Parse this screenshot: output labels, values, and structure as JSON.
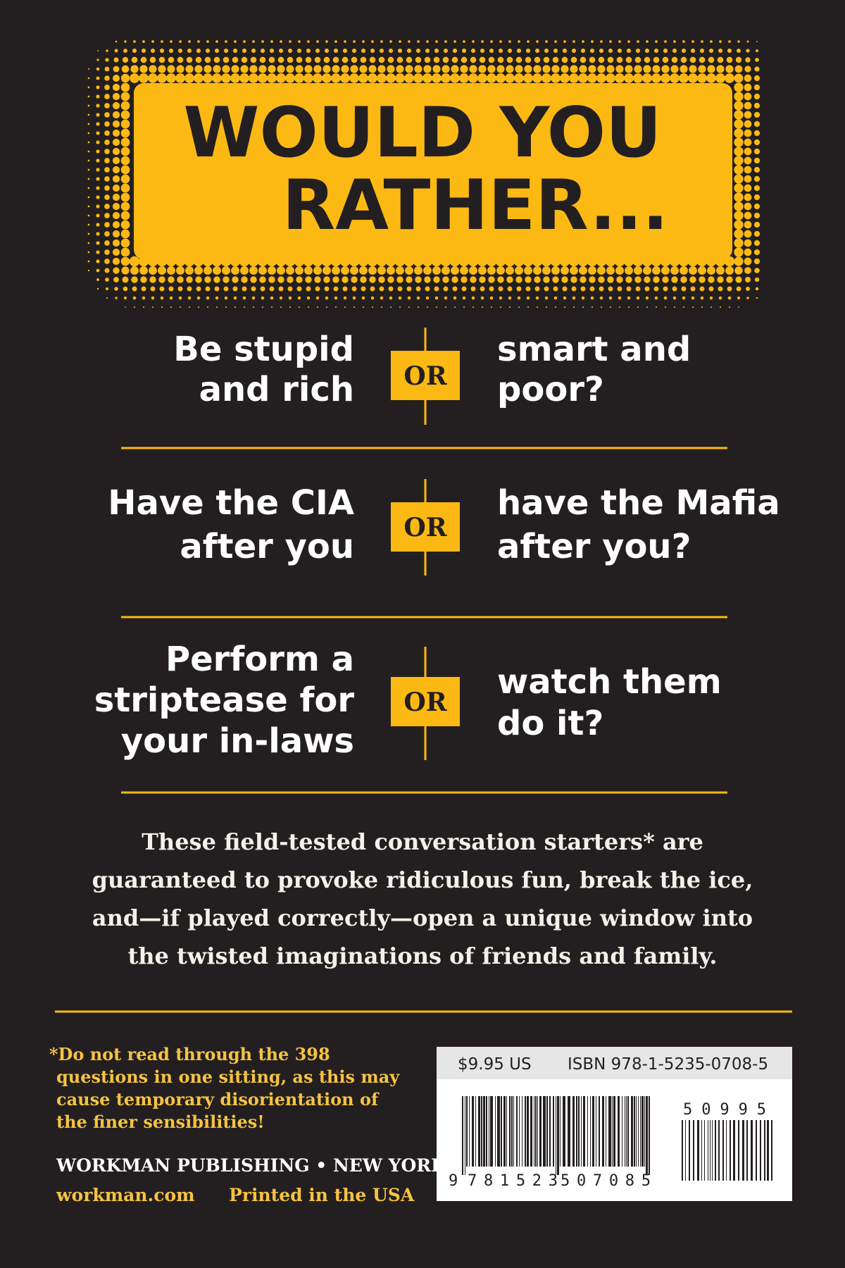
{
  "header": {
    "title": [
      "WOULD YOU",
      "RATHER..."
    ]
  },
  "questions": [
    {
      "left": [
        "Be stupid",
        "and rich"
      ],
      "or": "OR",
      "right": [
        "smart and",
        "poor?"
      ]
    },
    {
      "left": [
        "Have the CIA",
        "after you"
      ],
      "or": "OR",
      "right": [
        "have the Mafia",
        "after you?"
      ]
    },
    {
      "left": [
        "Perform a",
        "striptease for",
        "your in-laws"
      ],
      "or": "OR",
      "right": [
        "watch them",
        "do it?"
      ]
    }
  ],
  "blurb": [
    "These field-tested conversation starters* are",
    "guaranteed to provoke ridiculous fun, break the ice,",
    "and—if played correctly—open a unique window into",
    "the twisted imaginations of friends and family."
  ],
  "footnote": [
    "*Do not read through the 398",
    "questions in one sitting, as this may",
    "cause temporary disorientation of",
    "the finer sensibilities!"
  ],
  "publisher": "WORKMAN PUBLISHING • NEW YORK",
  "website": "workman.com",
  "printed": "Printed in the USA",
  "barcode": {
    "price": "$9.95 US",
    "isbn": "ISBN 978-1-5235-0708-5",
    "digits_lead": "9",
    "digits_left": "781523",
    "digits_right": "507085",
    "addon": "50995"
  }
}
